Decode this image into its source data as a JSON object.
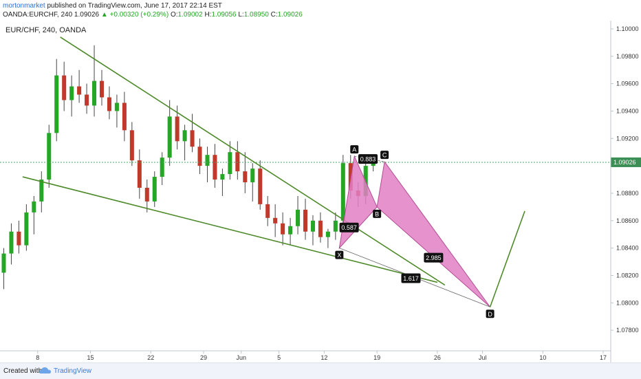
{
  "header": {
    "author": "mortonmarket",
    "published": " published on TradingView.com, June 17, 2017 22:14 EST",
    "symbol": "OANDA:EURCHF, 240",
    "last": "1.09026",
    "change": "▲ +0.00320 (+0.29%)",
    "o_label": "O:",
    "o": "1.09002",
    "h_label": "H:",
    "h": "1.09056",
    "l_label": "L:",
    "l": "1.08950",
    "c_label": "C:",
    "c": "1.09026"
  },
  "footer": {
    "created_with": "Created with",
    "brand": "TradingView"
  },
  "colors": {
    "up": "#26a626",
    "down": "#c0392b",
    "pattern": "#e27fc3",
    "trend": "#4e8a2a",
    "label_bg": "#111111"
  },
  "chart_data": {
    "type": "candlestick",
    "title": "EUR/CHF, 240, OANDA",
    "ylim": [
      1.0765,
      1.1006
    ],
    "xlim": [
      0,
      81
    ],
    "x_ticks": [
      {
        "x": 5,
        "label": "8"
      },
      {
        "x": 12,
        "label": "15"
      },
      {
        "x": 20,
        "label": "22"
      },
      {
        "x": 27,
        "label": "29"
      },
      {
        "x": 32,
        "label": "Jun"
      },
      {
        "x": 37,
        "label": "5"
      },
      {
        "x": 43,
        "label": "12"
      },
      {
        "x": 50,
        "label": "19"
      },
      {
        "x": 58,
        "label": "26"
      },
      {
        "x": 64,
        "label": "Jul"
      },
      {
        "x": 72,
        "label": "10"
      },
      {
        "x": 80,
        "label": "17"
      }
    ],
    "y_ticks": [
      "1.10000",
      "1.09800",
      "1.09600",
      "1.09400",
      "1.09200",
      "1.08800",
      "1.08600",
      "1.08400",
      "1.08200",
      "1.08000",
      "1.07800"
    ],
    "last_price": "1.09026",
    "candles": [
      [
        1.0822,
        1.084,
        1.081,
        1.0836
      ],
      [
        1.0836,
        1.0858,
        1.0828,
        1.0852
      ],
      [
        1.0852,
        1.086,
        1.0836,
        1.0842
      ],
      [
        1.0842,
        1.0872,
        1.0838,
        1.0866
      ],
      [
        1.0866,
        1.0878,
        1.085,
        1.0874
      ],
      [
        1.0874,
        1.0896,
        1.0866,
        1.089
      ],
      [
        1.089,
        1.093,
        1.0884,
        1.0924
      ],
      [
        1.0924,
        1.0978,
        1.0918,
        1.0966
      ],
      [
        1.0966,
        1.0976,
        1.094,
        1.0948
      ],
      [
        1.0948,
        1.0966,
        1.0936,
        1.0958
      ],
      [
        1.0958,
        1.097,
        1.0946,
        1.0952
      ],
      [
        1.0952,
        1.096,
        1.0938,
        1.0944
      ],
      [
        1.0944,
        1.0988,
        1.0936,
        1.0962
      ],
      [
        1.0962,
        1.097,
        1.0944,
        1.095
      ],
      [
        1.095,
        1.0958,
        1.0934,
        1.094
      ],
      [
        1.094,
        1.0952,
        1.0928,
        1.0946
      ],
      [
        1.0946,
        1.0954,
        1.0918,
        1.0926
      ],
      [
        1.0926,
        1.0932,
        1.09,
        1.0904
      ],
      [
        1.0904,
        1.0912,
        1.0876,
        1.0884
      ],
      [
        1.0884,
        1.089,
        1.0866,
        1.0874
      ],
      [
        1.0874,
        1.0896,
        1.087,
        1.0892
      ],
      [
        1.0892,
        1.091,
        1.0886,
        1.0906
      ],
      [
        1.0906,
        1.0948,
        1.09,
        1.0936
      ],
      [
        1.0936,
        1.0944,
        1.0912,
        1.0918
      ],
      [
        1.0918,
        1.093,
        1.0904,
        1.0926
      ],
      [
        1.0926,
        1.0938,
        1.091,
        1.0914
      ],
      [
        1.0914,
        1.092,
        1.0894,
        1.09
      ],
      [
        1.09,
        1.0914,
        1.0888,
        1.0908
      ],
      [
        1.0908,
        1.0916,
        1.0884,
        1.089
      ],
      [
        1.089,
        1.0898,
        1.0878,
        1.0894
      ],
      [
        1.0894,
        1.0918,
        1.089,
        1.091
      ],
      [
        1.091,
        1.0918,
        1.089,
        1.0896
      ],
      [
        1.0896,
        1.091,
        1.088,
        1.0888
      ],
      [
        1.0888,
        1.0902,
        1.0874,
        1.0898
      ],
      [
        1.0898,
        1.0904,
        1.0868,
        1.0872
      ],
      [
        1.0872,
        1.0878,
        1.0856,
        1.0862
      ],
      [
        1.0862,
        1.0872,
        1.0848,
        1.0858
      ],
      [
        1.0858,
        1.0866,
        1.0842,
        1.085
      ],
      [
        1.085,
        1.0862,
        1.0842,
        1.0856
      ],
      [
        1.0856,
        1.0878,
        1.085,
        1.0868
      ],
      [
        1.0868,
        1.0876,
        1.0846,
        1.0852
      ],
      [
        1.0852,
        1.0864,
        1.0842,
        1.086
      ],
      [
        1.086,
        1.0866,
        1.0844,
        1.0848
      ],
      [
        1.0848,
        1.0854,
        1.084,
        1.0852
      ],
      [
        1.0852,
        1.0866,
        1.0846,
        1.086
      ],
      [
        1.086,
        1.0908,
        1.0856,
        1.0902
      ],
      [
        1.0902,
        1.0908,
        1.0876,
        1.0882
      ],
      [
        1.0882,
        1.0888,
        1.087,
        1.0878
      ],
      [
        1.0878,
        1.0904,
        1.0872,
        1.09
      ],
      [
        1.09,
        1.0906,
        1.0896,
        1.0903
      ]
    ],
    "trendlines": [
      {
        "name": "upper-trendline",
        "x1": 8,
        "y1": 1.0994,
        "x2": 59,
        "y2": 1.0813
      },
      {
        "name": "lower-trendline",
        "x1": 3,
        "y1": 1.0892,
        "x2": 58,
        "y2": 1.0815
      }
    ],
    "pattern": {
      "points": {
        "X": [
          45,
          1.084
        ],
        "A": [
          47,
          1.0907
        ],
        "B": [
          50,
          1.087
        ],
        "C": [
          51,
          1.0903
        ],
        "D": [
          65,
          1.0797
        ]
      },
      "ratios": [
        {
          "label": "0.587",
          "x": 46.3,
          "y": 1.0855
        },
        {
          "label": "0.883",
          "x": 48.8,
          "y": 1.0905
        },
        {
          "label": "2.985",
          "x": 57.5,
          "y": 1.0833
        },
        {
          "label": "1.617",
          "x": 54.5,
          "y": 1.0818
        }
      ],
      "projection": [
        [
          65,
          1.0797
        ],
        [
          69.6,
          1.0867
        ]
      ]
    }
  }
}
